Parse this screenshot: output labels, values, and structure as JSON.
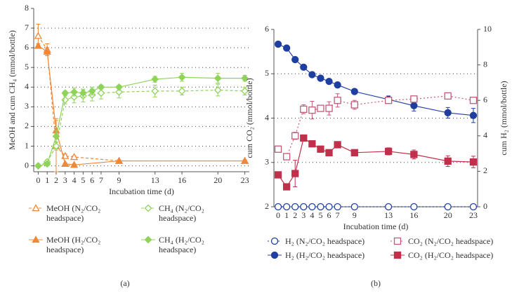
{
  "chart_data": [
    {
      "type": "line",
      "caption": "(a)",
      "xlabel": "Incubation time (d)",
      "ylabel": "MeOH and cum CH₄ (mmol/bottle)",
      "xlim": [
        -0.5,
        23.5
      ],
      "xticks": [
        0,
        1,
        2,
        3,
        4,
        5,
        6,
        7,
        9,
        13,
        16,
        20,
        23
      ],
      "ylim": [
        -0.3,
        8
      ],
      "yticks": [
        0,
        1,
        2,
        3,
        4,
        5,
        6,
        7,
        8
      ],
      "grid": true,
      "series": [
        {
          "name": "MeOH (N₂/CO₂ headspace)",
          "color": "#f0883a",
          "marker": "triangle",
          "filled": false,
          "linestyle": "dashed",
          "x": [
            0,
            1,
            2,
            3,
            4,
            9,
            23
          ],
          "values": [
            6.6,
            5.9,
            1.0,
            0.5,
            0.45,
            0.25,
            0.25
          ],
          "errors": [
            0.6,
            0.3,
            1.3,
            0.1,
            0.05,
            0.05,
            0.05
          ]
        },
        {
          "name": "MeOH (H₂/CO₂ headspace)",
          "color": "#f0883a",
          "marker": "triangle",
          "filled": true,
          "linestyle": "solid",
          "x": [
            0,
            1,
            2,
            3,
            4,
            9,
            23
          ],
          "values": [
            6.1,
            5.8,
            1.8,
            0.1,
            0.05,
            0.25,
            0.25
          ],
          "errors": [
            0.1,
            0.2,
            0.6,
            0.05,
            0.05,
            0.05,
            0.05
          ]
        },
        {
          "name": "CH₄ (N₂/CO₂ headspace)",
          "color": "#8fd35a",
          "marker": "diamond",
          "filled": false,
          "linestyle": "dashed",
          "x": [
            0,
            1,
            2,
            3,
            4,
            5,
            6,
            7,
            9,
            13,
            16,
            20,
            23
          ],
          "values": [
            0,
            0.2,
            1.0,
            3.35,
            3.5,
            3.55,
            3.6,
            3.7,
            3.75,
            3.8,
            3.8,
            3.85,
            3.8
          ],
          "errors": [
            0.05,
            0.1,
            0.2,
            0.2,
            0.3,
            0.3,
            0.3,
            0.3,
            0.3,
            0.3,
            0.2,
            0.3,
            0.2
          ]
        },
        {
          "name": "CH₄ (H₂/CO₂ headspace)",
          "color": "#8fd35a",
          "marker": "diamond",
          "filled": true,
          "linestyle": "solid",
          "x": [
            0,
            1,
            2,
            3,
            4,
            5,
            6,
            7,
            9,
            13,
            16,
            20,
            23
          ],
          "values": [
            0,
            0.1,
            1.5,
            3.7,
            3.75,
            3.7,
            3.8,
            4.0,
            4.0,
            4.4,
            4.5,
            4.45,
            4.45
          ],
          "errors": [
            0.05,
            0.1,
            0.3,
            0.1,
            0.2,
            0.2,
            0.2,
            0.1,
            0.1,
            0.15,
            0.2,
            0.25,
            0.15
          ]
        }
      ]
    },
    {
      "type": "line",
      "caption": "(b)",
      "xlabel": "Incubation time (d)",
      "ylabel": "cum CO₂ (mmol/bottle)",
      "y2label": "cum H₂ (mmol/bottle)",
      "xlim": [
        -0.5,
        23.5
      ],
      "xticks": [
        0,
        1,
        2,
        3,
        4,
        5,
        6,
        7,
        9,
        13,
        16,
        20,
        23
      ],
      "ylim": [
        2,
        6
      ],
      "yticks": [
        2,
        3,
        4,
        5,
        6
      ],
      "y2lim": [
        0,
        10
      ],
      "y2ticks": [
        0,
        2,
        4,
        6,
        8,
        10
      ],
      "grid": true,
      "series": [
        {
          "name": "H₂ (N₂/CO₂ headspace)",
          "color": "#1f3fa0",
          "marker": "circle",
          "filled": false,
          "linestyle": "dotted",
          "axis": "y2",
          "x": [
            0,
            1,
            2,
            3,
            4,
            5,
            6,
            7,
            9,
            13,
            16,
            20,
            23
          ],
          "values": [
            0,
            0,
            0,
            0,
            0,
            0,
            0,
            0,
            0,
            0,
            0,
            0,
            0
          ],
          "errors": [
            0,
            0,
            0,
            0,
            0,
            0,
            0,
            0,
            0,
            0,
            0,
            0,
            0
          ]
        },
        {
          "name": "H₂ (H₂/CO₂ headspace)",
          "color": "#1f3fa0",
          "marker": "circle",
          "filled": true,
          "linestyle": "solid",
          "axis": "y2",
          "x": [
            0,
            1,
            2,
            3,
            4,
            5,
            6,
            7,
            9,
            13,
            16,
            20,
            23
          ],
          "values": [
            9.17,
            8.95,
            8.3,
            7.87,
            7.45,
            7.25,
            7.07,
            6.87,
            6.5,
            6.05,
            5.7,
            5.3,
            5.15
          ],
          "errors": [
            0.05,
            0.05,
            0.1,
            0.1,
            0.1,
            0.1,
            0.1,
            0.1,
            0.1,
            0.2,
            0.3,
            0.3,
            0.4
          ]
        },
        {
          "name": "CO₂ (N₂/CO₂ headspace)",
          "color": "#c45a78",
          "marker": "square",
          "filled": false,
          "linestyle": "dotted",
          "x": [
            0,
            1,
            2,
            3,
            4,
            5,
            6,
            7,
            9,
            13,
            16,
            20,
            23
          ],
          "values": [
            3.3,
            3.13,
            3.6,
            4.2,
            4.18,
            4.22,
            4.22,
            4.4,
            4.3,
            4.4,
            4.43,
            4.5,
            4.4
          ],
          "errors": [
            0.03,
            0.03,
            0.08,
            0.1,
            0.2,
            0.05,
            0.15,
            0.15,
            0.1,
            0.05,
            0.05,
            0.07,
            0.05
          ]
        },
        {
          "name": "CO₂ (H₂/CO₂ headspace)",
          "color": "#c0304a",
          "marker": "square",
          "filled": true,
          "linestyle": "solid",
          "x": [
            0,
            1,
            2,
            3,
            4,
            5,
            6,
            7,
            9,
            13,
            16,
            20,
            23
          ],
          "values": [
            2.72,
            2.45,
            2.75,
            3.55,
            3.42,
            3.3,
            3.22,
            3.4,
            3.22,
            3.25,
            3.18,
            3.03,
            3.01
          ],
          "errors": [
            0.05,
            0.05,
            0.3,
            0.03,
            0.05,
            0.03,
            0.03,
            0.05,
            0.05,
            0.08,
            0.1,
            0.12,
            0.13
          ]
        }
      ]
    }
  ]
}
